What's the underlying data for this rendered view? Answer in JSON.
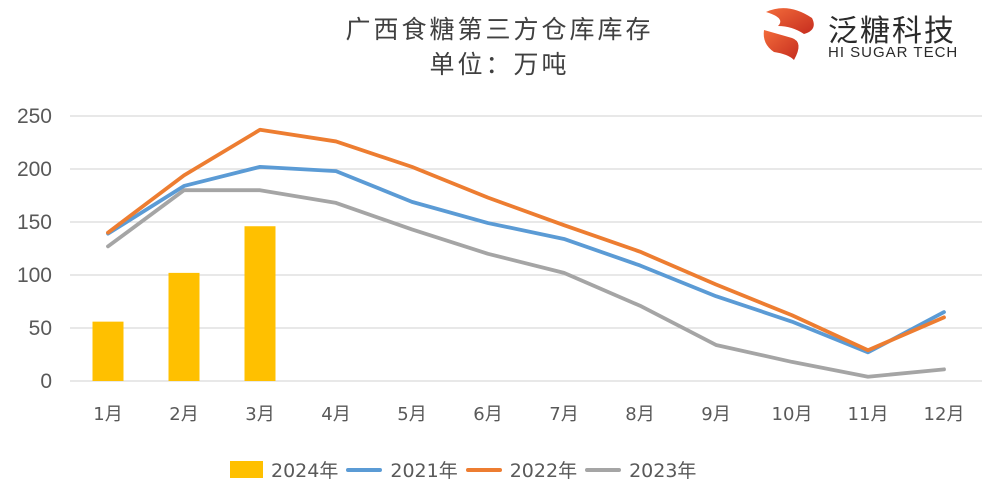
{
  "header": {
    "title": "广西食糖第三方仓库库存",
    "subtitle": "单位：万吨"
  },
  "logo": {
    "name_cn": "泛糖科技",
    "name_en": "HI SUGAR TECH",
    "colors": [
      "#e8502a",
      "#c0392b"
    ]
  },
  "chart_data": {
    "type": "bar+line",
    "title": "广西食糖第三方仓库库存",
    "subtitle": "单位：万吨",
    "xlabel": "",
    "ylabel": "",
    "categories": [
      "1月",
      "2月",
      "3月",
      "4月",
      "5月",
      "6月",
      "7月",
      "8月",
      "9月",
      "10月",
      "11月",
      "12月"
    ],
    "ylim": [
      0,
      250
    ],
    "yticks": [
      0,
      50,
      100,
      150,
      200,
      250
    ],
    "grid": true,
    "legend_position": "bottom",
    "series": [
      {
        "name": "2024年",
        "type": "bar",
        "color": "#ffc000",
        "values": [
          56,
          102,
          146,
          null,
          null,
          null,
          null,
          null,
          null,
          null,
          null,
          null
        ]
      },
      {
        "name": "2021年",
        "type": "line",
        "color": "#5b9bd5",
        "values": [
          139,
          184,
          202,
          198,
          169,
          149,
          134,
          109,
          80,
          56,
          27,
          65
        ]
      },
      {
        "name": "2022年",
        "type": "line",
        "color": "#ed7d31",
        "values": [
          140,
          194,
          237,
          226,
          202,
          173,
          147,
          122,
          91,
          62,
          29,
          60
        ]
      },
      {
        "name": "2023年",
        "type": "line",
        "color": "#a5a5a5",
        "values": [
          127,
          180,
          180,
          168,
          143,
          120,
          102,
          71,
          34,
          18,
          4,
          11
        ]
      }
    ]
  }
}
